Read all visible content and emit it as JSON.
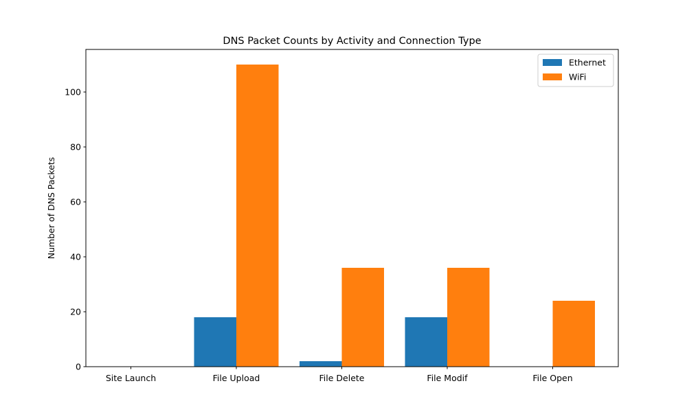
{
  "chart_data": {
    "type": "bar",
    "title": "DNS Packet Counts by Activity and Connection Type",
    "xlabel": "",
    "ylabel": "Number of DNS Packets",
    "categories": [
      "Site Launch",
      "File Upload",
      "File Delete",
      "File Modif",
      "File Open"
    ],
    "series": [
      {
        "name": "Ethernet",
        "color": "#1f77b4",
        "values": [
          0,
          18,
          2,
          18,
          0
        ]
      },
      {
        "name": "WiFi",
        "color": "#ff7f0e",
        "values": [
          0,
          110,
          36,
          36,
          24
        ]
      }
    ],
    "ylim": [
      0,
      115.5
    ],
    "yticks": [
      0,
      20,
      40,
      60,
      80,
      100
    ],
    "grid": false,
    "legend_position": "top-right"
  }
}
